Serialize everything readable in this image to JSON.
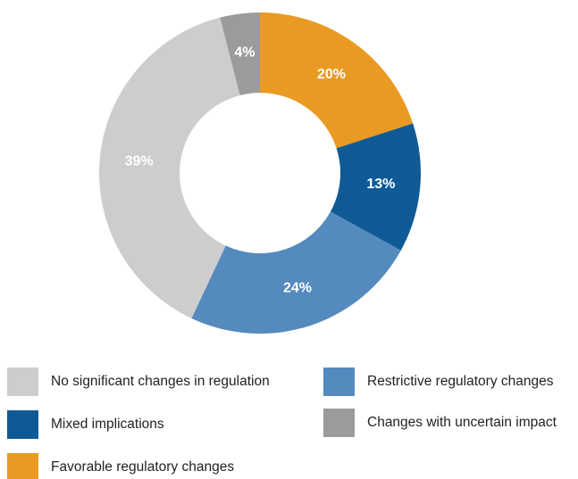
{
  "chart_data": {
    "type": "donut",
    "categories": [
      "Favorable regulatory changes",
      "Mixed implications",
      "Restrictive regulatory changes",
      "No significant changes in regulation",
      "Changes with uncertain impact"
    ],
    "values": [
      20,
      13,
      24,
      39,
      4
    ],
    "value_labels": [
      "20%",
      "13%",
      "24%",
      "39%",
      "4%"
    ],
    "colors": [
      "#e99a22",
      "#0f5a95",
      "#548abd",
      "#cdcdcd",
      "#9b9b9b"
    ]
  }
}
